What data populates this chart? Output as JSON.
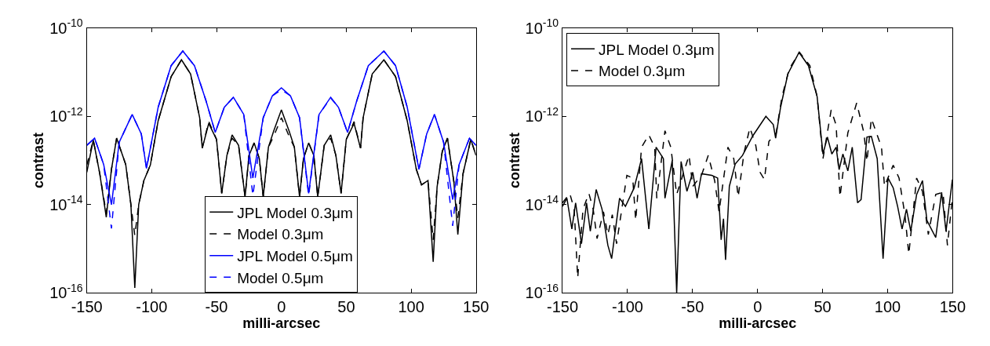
{
  "chart_data": [
    {
      "type": "line",
      "xlabel": "milli-arcsec",
      "ylabel": "contrast",
      "log": "y",
      "legend": "bottom",
      "marker": "none",
      "xlim": [
        -150,
        150
      ],
      "xticks": [
        -150,
        -100,
        -50,
        0,
        50,
        100,
        150
      ],
      "ylim": [
        1e-16,
        1e-10
      ],
      "yticks": [
        {
          "value": 1e-16,
          "label": "10$^{-16}$"
        },
        {
          "value": 1e-14,
          "label": "10$^{-14}$"
        },
        {
          "value": 1e-12,
          "label": "10$^{-12}$"
        },
        {
          "value": 1e-10,
          "label": "10$^{-10}$"
        }
      ],
      "series": [
        {
          "name": "JPL Model 0.3μm",
          "color": "#000000",
          "line_style": "solid",
          "x": [
            -150,
            -145,
            -140,
            -135,
            -131,
            -127,
            -120,
            -116,
            -113,
            -110,
            -106,
            -101,
            -95,
            -85,
            -77,
            -70,
            -63,
            -61,
            -56,
            -50,
            -46,
            -42,
            -38,
            -33,
            -28,
            -25,
            -21,
            -17,
            -14,
            -10,
            -6,
            0,
            6,
            10,
            14,
            17,
            21,
            25,
            28,
            33,
            38,
            42,
            46,
            50,
            56,
            61,
            63,
            70,
            79,
            88,
            97,
            104,
            108,
            113,
            117,
            120,
            124,
            128,
            133,
            136,
            140,
            146,
            150
          ],
          "values": [
            5.4e-14,
            2.9e-13,
            5e-14,
            5.2e-15,
            6.3e-14,
            3.2e-13,
            8.1e-14,
            1e-14,
            1.3e-16,
            1e-14,
            3.5e-14,
            7.9e-14,
            7.9e-13,
            7.9e-12,
            1.9e-11,
            9.1e-12,
            9.3e-13,
            1.9e-13,
            6.9e-13,
            3e-13,
            1.8e-14,
            1.3e-13,
            3.8e-13,
            2.2e-13,
            1.5e-14,
            1.3e-13,
            2.5e-13,
            1.1e-13,
            1.5e-14,
            2e-13,
            4.6e-13,
            1.4e-12,
            4.6e-13,
            2e-13,
            1.5e-14,
            1.1e-13,
            2.5e-13,
            1.3e-13,
            1.5e-14,
            2.2e-13,
            3.8e-13,
            1.3e-13,
            1.8e-14,
            3e-13,
            6.9e-13,
            1.9e-13,
            9.3e-13,
            9.1e-12,
            1.9e-11,
            7.9e-12,
            7.9e-13,
            6.3e-14,
            2.8e-14,
            3.5e-14,
            5.1e-16,
            2.5e-14,
            1.6e-13,
            3.2e-13,
            3.2e-14,
            2.1e-15,
            5e-14,
            3e-13,
            1.3e-13
          ]
        },
        {
          "name": "Model 0.3μm",
          "color": "#000000",
          "line_style": "dashed",
          "x": [
            -150,
            -145,
            -140,
            -135,
            -131,
            -127,
            -120,
            -116,
            -113,
            -110,
            -106,
            -101,
            -95,
            -85,
            -77,
            -70,
            -63,
            -61,
            -56,
            -50,
            -46,
            -42,
            -38,
            -33,
            -28,
            -25,
            -21,
            -17,
            -14,
            -10,
            -6,
            0,
            6,
            10,
            14,
            17,
            21,
            25,
            28,
            33,
            38,
            42,
            46,
            50,
            56,
            61,
            63,
            70,
            79,
            88,
            97,
            104,
            108,
            113,
            117,
            120,
            124,
            128,
            133,
            136,
            140,
            146,
            150
          ],
          "values": [
            7.9e-14,
            2.9e-13,
            5e-14,
            6.3e-15,
            6.3e-14,
            3.2e-13,
            8.1e-14,
            1e-14,
            2e-15,
            1e-14,
            3.5e-14,
            7.9e-14,
            7.9e-13,
            7.9e-12,
            1.9e-11,
            9.1e-12,
            9.3e-13,
            1.9e-13,
            7.6e-13,
            3e-13,
            1.8e-14,
            1.3e-13,
            3.2e-13,
            2.2e-13,
            1.5e-14,
            1.3e-13,
            2.5e-13,
            1.1e-13,
            1.5e-14,
            2e-13,
            3.5e-13,
            9.3e-13,
            3.5e-13,
            2e-13,
            1.5e-14,
            1.1e-13,
            2.5e-13,
            1.3e-13,
            1.5e-14,
            2.2e-13,
            3.2e-13,
            1.3e-13,
            1.8e-14,
            3e-13,
            7.6e-13,
            1.9e-13,
            9.3e-13,
            9.1e-12,
            1.9e-11,
            7.9e-12,
            7.9e-13,
            6.3e-14,
            2.8e-14,
            3.5e-14,
            1.6e-15,
            2.5e-14,
            1.6e-13,
            3.2e-13,
            3.2e-14,
            5e-15,
            5e-14,
            3e-13,
            1.3e-13
          ]
        },
        {
          "name": "JPL Model 0.5μm",
          "color": "#0000ff",
          "line_style": "solid",
          "x": [
            -150,
            -144,
            -137,
            -131,
            -125,
            -115,
            -108,
            -104,
            -95,
            -85,
            -76,
            -67,
            -58,
            -51,
            -44,
            -37,
            -29,
            -22,
            -14,
            -7,
            0,
            7,
            14,
            21,
            29,
            38,
            44,
            51,
            58,
            67,
            79,
            88,
            97,
            106,
            112,
            118,
            125,
            132,
            137,
            145,
            150
          ],
          "values": [
            2.2e-13,
            3.2e-13,
            8.1e-14,
            1e-14,
            2.6e-13,
            1.1e-12,
            4e-13,
            6.6e-14,
            1.6e-12,
            1.4e-11,
            3e-11,
            1.4e-11,
            2.2e-12,
            4.3e-13,
            1.6e-12,
            2.7e-12,
            1.1e-12,
            4e-14,
            9.3e-13,
            2.9e-12,
            4.4e-12,
            2.9e-12,
            9.3e-13,
            1.8e-14,
            1.1e-12,
            2.7e-12,
            1.6e-12,
            4.3e-13,
            2.2e-12,
            1.4e-11,
            3e-11,
            1.4e-11,
            1.6e-12,
            6.3e-14,
            4e-13,
            1.1e-12,
            2.6e-13,
            1.3e-14,
            8.1e-14,
            3.2e-13,
            2.2e-13
          ]
        },
        {
          "name": "Model 0.5μm",
          "color": "#0000ff",
          "line_style": "dashed",
          "x": [
            -150,
            -144,
            -137,
            -131,
            -125,
            -115,
            -108,
            -104,
            -95,
            -85,
            -76,
            -67,
            -58,
            -51,
            -44,
            -37,
            -29,
            -22,
            -14,
            -7,
            0,
            7,
            14,
            21,
            29,
            38,
            44,
            51,
            58,
            67,
            79,
            88,
            97,
            106,
            112,
            118,
            125,
            132,
            137,
            145,
            150
          ],
          "values": [
            2.2e-13,
            3.2e-13,
            8.1e-14,
            2.9e-15,
            2.6e-13,
            1.1e-12,
            4e-13,
            6.6e-14,
            1.6e-12,
            1.4e-11,
            3e-11,
            1.4e-11,
            2.2e-12,
            4.3e-13,
            1.6e-12,
            2.7e-12,
            1.1e-12,
            1.6e-14,
            9.3e-13,
            2.9e-12,
            4e-12,
            2.9e-12,
            9.3e-13,
            1.6e-14,
            1.1e-12,
            2.6e-12,
            1.6e-12,
            4.3e-13,
            2.2e-12,
            1.4e-11,
            3e-11,
            1.4e-11,
            1.6e-12,
            6.3e-14,
            4e-13,
            1.1e-12,
            2.6e-13,
            3.3e-15,
            8.1e-14,
            3.2e-13,
            2.2e-13
          ]
        }
      ]
    },
    {
      "type": "line",
      "xlabel": "milli-arcsec",
      "ylabel": "contrast",
      "log": "y",
      "legend": "top left",
      "marker": "none",
      "xlim": [
        -150,
        150
      ],
      "xticks": [
        -150,
        -100,
        -50,
        0,
        50,
        100,
        150
      ],
      "ylim": [
        1e-16,
        1e-10
      ],
      "yticks": [
        {
          "value": 1e-16,
          "label": "10$^{-16}$"
        },
        {
          "value": 1e-14,
          "label": "10$^{-14}$"
        },
        {
          "value": 1e-12,
          "label": "10$^{-12}$"
        },
        {
          "value": 1e-10,
          "label": "10$^{-10}$"
        }
      ],
      "series": [
        {
          "name": "JPL Model 0.3μm",
          "color": "#000000",
          "line_style": "solid",
          "x": [
            -150,
            -146.6,
            -142.8,
            -139.9,
            -135.4,
            -131.5,
            -128.6,
            -124.1,
            -119.6,
            -115.1,
            -112.2,
            -106.1,
            -101.6,
            -94.9,
            -89.2,
            -83.6,
            -78,
            -72.4,
            -71.2,
            -65.6,
            -62.2,
            -58.8,
            -54.3,
            -49.8,
            -46.5,
            -43.1,
            -35.2,
            -30.7,
            -28,
            -26.2,
            -24.6,
            -21.7,
            -17.2,
            -11.6,
            -3.7,
            6.4,
            12.1,
            13.9,
            17.7,
            23.3,
            31.9,
            39.1,
            45.8,
            50.3,
            53.7,
            57.1,
            60.4,
            62.7,
            65.6,
            69.4,
            72.8,
            76.9,
            79.6,
            84.1,
            87.5,
            92,
            96.5,
            100.3,
            104.3,
            107.7,
            111.1,
            114.5,
            117.8,
            122.3,
            126.8,
            130.2,
            133.6,
            137,
            141.5,
            144.9,
            149.8
          ],
          "values": [
            9.1e-15,
            1.4e-14,
            2.8e-15,
            1.1e-14,
            1.3e-15,
            1.1e-14,
            2.5e-15,
            2.2e-14,
            7.9e-15,
            1.2e-15,
            6e-16,
            1.4e-14,
            9.1e-15,
            2.4e-14,
            1.1e-13,
            2.8e-15,
            2e-13,
            1.1e-13,
            1.4e-14,
            1e-13,
            1e-16,
            9.5e-14,
            2e-14,
            5.4e-14,
            1.4e-14,
            5e-14,
            4.6e-14,
            4e-14,
            1.6e-15,
            4.8e-15,
            5.6e-16,
            2.6e-14,
            8.3e-14,
            1.3e-13,
            3.6e-13,
            1e-12,
            6.5e-13,
            3.2e-13,
            1.6e-12,
            9.1e-12,
            2.8e-11,
            1.4e-11,
            2.8e-12,
            1.4e-13,
            3.4e-13,
            1.4e-13,
            2e-13,
            6.2e-14,
            1.4e-13,
            5.8e-14,
            2e-13,
            1.1e-14,
            1.3e-14,
            3.4e-13,
            3.5e-13,
            1.1e-13,
            6e-16,
            4e-14,
            2.4e-14,
            9.1e-15,
            2.8e-15,
            7.9e-15,
            2.5e-15,
            1.7e-14,
            3.5e-14,
            4.4e-15,
            2.8e-15,
            1.8e-15,
            1.9e-14,
            2.5e-15,
            3.7e-14
          ]
        },
        {
          "name": "Model 0.3μm",
          "color": "#000000",
          "line_style": "dashed",
          "x": [
            -150,
            -144.4,
            -141,
            -138.3,
            -134.2,
            -129.7,
            -126.4,
            -123.4,
            -118.5,
            -115.1,
            -111.7,
            -108.4,
            -100.5,
            -96,
            -93.7,
            -89.2,
            -83.6,
            -79.1,
            -77.5,
            -71.2,
            -66.7,
            -62.2,
            -52.7,
            -49.8,
            -43.1,
            -37.9,
            -33,
            -29.6,
            -22.8,
            -18.3,
            -14.9,
            -10.4,
            -5.9,
            -1.4,
            1.9,
            5.3,
            8.7,
            14.3,
            18.8,
            24.4,
            32.3,
            40.2,
            45.8,
            50.3,
            56.6,
            60.4,
            63.4,
            69.4,
            76.2,
            81.8,
            84.1,
            87.5,
            95.3,
            97.6,
            104.3,
            108.8,
            113.3,
            116.3,
            122.3,
            126.8,
            131.3,
            137,
            142.6,
            146,
            149.8
          ],
          "values": [
            1.1e-14,
            1.8e-14,
            7.9e-15,
            2.2e-16,
            7.9e-15,
            1.8e-14,
            7.9e-15,
            1.7e-15,
            6.9e-15,
            2.1e-15,
            5.9e-15,
            1.3e-15,
            4.6e-14,
            4e-14,
            4.4e-15,
            2e-13,
            3.8e-13,
            2e-13,
            1.4e-14,
            4.7e-13,
            2e-13,
            1.7e-14,
            1.3e-13,
            2.6e-14,
            4.6e-14,
            1.3e-13,
            3.5e-14,
            6.9e-15,
            2e-13,
            1.1e-13,
            1.5e-14,
            1.5e-13,
            5.5e-13,
            2.2e-13,
            5.4e-14,
            3.7e-14,
            2.7e-13,
            4.2e-13,
            2.8e-12,
            1.2e-11,
            2.8e-11,
            1.4e-11,
            2.8e-12,
            1.1e-13,
            1.4e-12,
            6.3e-13,
            1.5e-14,
            4.2e-13,
            2e-12,
            4.2e-13,
            9.5e-14,
            8.9e-13,
            2e-13,
            2.6e-14,
            7.8e-14,
            4e-14,
            5.9e-15,
            7.6e-16,
            4e-14,
            2e-14,
            2.1e-15,
            1.7e-14,
            1.9e-14,
            1.2e-15,
            1.4e-14
          ]
        }
      ]
    }
  ]
}
